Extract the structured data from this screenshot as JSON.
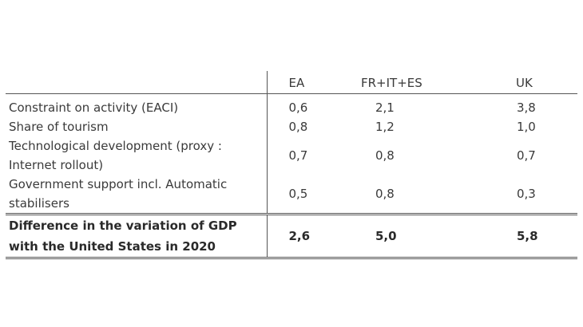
{
  "table": {
    "headers": {
      "label": "",
      "columns": [
        "EA",
        "FR+IT+ES",
        "UK"
      ]
    },
    "rows": [
      {
        "label": "Constraint on activity (EACI)",
        "values": [
          "0,6",
          "2,1",
          "3,8"
        ]
      },
      {
        "label": "Share of tourism",
        "values": [
          "0,8",
          "1,2",
          "1,0"
        ]
      },
      {
        "label": "Technological development (proxy : Internet rollout)",
        "values": [
          "0,7",
          "0,8",
          "0,7"
        ]
      },
      {
        "label": "Government support incl. Automatic stabilisers",
        "values": [
          "0,5",
          "0,8",
          "0,3"
        ]
      }
    ],
    "total": {
      "label": "Difference in the variation of GDP with the United States in 2020",
      "values": [
        "2,6",
        "5,0",
        "5,8"
      ]
    }
  }
}
